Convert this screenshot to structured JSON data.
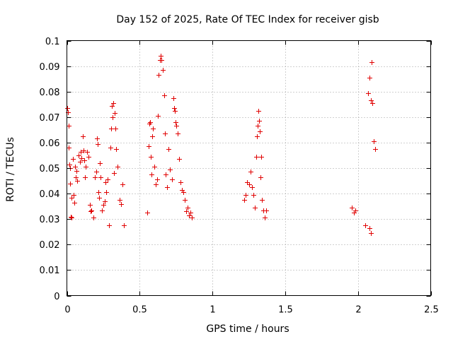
{
  "chart_data": {
    "type": "scatter",
    "title": "Day 152 of 2025, Rate Of TEC Index for receiver gisb",
    "xlabel": "GPS time / hours",
    "ylabel": "ROTI / TECUs",
    "xlim": [
      0,
      2.5
    ],
    "ylim": [
      0,
      0.1
    ],
    "x_ticks": [
      "0",
      "0.5",
      "1",
      "1.5",
      "2",
      "2.5"
    ],
    "y_ticks": [
      "0",
      "0.01",
      "0.02",
      "0.03",
      "0.04",
      "0.05",
      "0.06",
      "0.07",
      "0.08",
      "0.09",
      "0.1"
    ],
    "x_tick_values": [
      0,
      0.5,
      1,
      1.5,
      2,
      2.5
    ],
    "y_tick_values": [
      0,
      0.01,
      0.02,
      0.03,
      0.04,
      0.05,
      0.06,
      0.07,
      0.08,
      0.09,
      0.1
    ],
    "grid": true,
    "marker": "+",
    "color": "#e00000",
    "series": [
      {
        "points": [
          [
            0.0,
            0.0735
          ],
          [
            0.005,
            0.072
          ],
          [
            0.01,
            0.0665
          ],
          [
            0.012,
            0.058
          ],
          [
            0.015,
            0.0515
          ],
          [
            0.02,
            0.044
          ],
          [
            0.022,
            0.05
          ],
          [
            0.025,
            0.031
          ],
          [
            0.03,
            0.0385
          ],
          [
            0.032,
            0.0305
          ],
          [
            0.04,
            0.0535
          ],
          [
            0.045,
            0.0395
          ],
          [
            0.05,
            0.0365
          ],
          [
            0.055,
            0.0505
          ],
          [
            0.06,
            0.0465
          ],
          [
            0.065,
            0.049
          ],
          [
            0.07,
            0.045
          ],
          [
            0.08,
            0.055
          ],
          [
            0.09,
            0.0525
          ],
          [
            0.095,
            0.0565
          ],
          [
            0.1,
            0.054
          ],
          [
            0.11,
            0.0625
          ],
          [
            0.115,
            0.057
          ],
          [
            0.12,
            0.053
          ],
          [
            0.125,
            0.0465
          ],
          [
            0.13,
            0.0505
          ],
          [
            0.14,
            0.0565
          ],
          [
            0.15,
            0.0545
          ],
          [
            0.16,
            0.0355
          ],
          [
            0.165,
            0.033
          ],
          [
            0.17,
            0.0335
          ],
          [
            0.18,
            0.0305
          ],
          [
            0.19,
            0.0465
          ],
          [
            0.2,
            0.0485
          ],
          [
            0.205,
            0.0615
          ],
          [
            0.21,
            0.0595
          ],
          [
            0.215,
            0.0405
          ],
          [
            0.22,
            0.0385
          ],
          [
            0.225,
            0.052
          ],
          [
            0.23,
            0.0465
          ],
          [
            0.24,
            0.0335
          ],
          [
            0.25,
            0.0355
          ],
          [
            0.26,
            0.037
          ],
          [
            0.265,
            0.0445
          ],
          [
            0.27,
            0.0405
          ],
          [
            0.28,
            0.0455
          ],
          [
            0.29,
            0.0275
          ],
          [
            0.3,
            0.058
          ],
          [
            0.305,
            0.0655
          ],
          [
            0.31,
            0.0745
          ],
          [
            0.315,
            0.07
          ],
          [
            0.32,
            0.0755
          ],
          [
            0.325,
            0.048
          ],
          [
            0.33,
            0.0715
          ],
          [
            0.335,
            0.0655
          ],
          [
            0.34,
            0.0575
          ],
          [
            0.35,
            0.0505
          ],
          [
            0.36,
            0.0375
          ],
          [
            0.37,
            0.036
          ],
          [
            0.38,
            0.0435
          ],
          [
            0.39,
            0.0275
          ],
          [
            0.55,
            0.0325
          ],
          [
            0.56,
            0.0585
          ],
          [
            0.565,
            0.0675
          ],
          [
            0.57,
            0.068
          ],
          [
            0.575,
            0.0545
          ],
          [
            0.58,
            0.0475
          ],
          [
            0.585,
            0.0625
          ],
          [
            0.59,
            0.0655
          ],
          [
            0.6,
            0.0505
          ],
          [
            0.61,
            0.0435
          ],
          [
            0.62,
            0.0455
          ],
          [
            0.625,
            0.0705
          ],
          [
            0.63,
            0.0865
          ],
          [
            0.64,
            0.0925
          ],
          [
            0.645,
            0.094
          ],
          [
            0.65,
            0.0925
          ],
          [
            0.66,
            0.0885
          ],
          [
            0.67,
            0.0785
          ],
          [
            0.675,
            0.0635
          ],
          [
            0.68,
            0.0475
          ],
          [
            0.69,
            0.0425
          ],
          [
            0.7,
            0.0575
          ],
          [
            0.71,
            0.0495
          ],
          [
            0.72,
            0.0455
          ],
          [
            0.73,
            0.0775
          ],
          [
            0.735,
            0.0735
          ],
          [
            0.74,
            0.0725
          ],
          [
            0.745,
            0.068
          ],
          [
            0.75,
            0.0665
          ],
          [
            0.76,
            0.0635
          ],
          [
            0.77,
            0.0535
          ],
          [
            0.78,
            0.0445
          ],
          [
            0.79,
            0.0415
          ],
          [
            0.8,
            0.0405
          ],
          [
            0.81,
            0.0375
          ],
          [
            0.82,
            0.033
          ],
          [
            0.83,
            0.0345
          ],
          [
            0.84,
            0.0315
          ],
          [
            0.85,
            0.0325
          ],
          [
            0.86,
            0.0305
          ],
          [
            1.22,
            0.0375
          ],
          [
            1.23,
            0.0395
          ],
          [
            1.24,
            0.0445
          ],
          [
            1.25,
            0.0435
          ],
          [
            1.26,
            0.0485
          ],
          [
            1.27,
            0.0425
          ],
          [
            1.28,
            0.0395
          ],
          [
            1.29,
            0.0345
          ],
          [
            1.3,
            0.0545
          ],
          [
            1.305,
            0.0625
          ],
          [
            1.31,
            0.0665
          ],
          [
            1.315,
            0.0725
          ],
          [
            1.32,
            0.0685
          ],
          [
            1.325,
            0.0645
          ],
          [
            1.33,
            0.0465
          ],
          [
            1.335,
            0.0545
          ],
          [
            1.34,
            0.0375
          ],
          [
            1.35,
            0.0335
          ],
          [
            1.36,
            0.0305
          ],
          [
            1.37,
            0.0335
          ],
          [
            1.96,
            0.0345
          ],
          [
            1.97,
            0.0325
          ],
          [
            1.98,
            0.0335
          ],
          [
            2.07,
            0.0795
          ],
          [
            2.08,
            0.0855
          ],
          [
            2.09,
            0.0765
          ],
          [
            2.095,
            0.0915
          ],
          [
            2.1,
            0.0755
          ],
          [
            2.11,
            0.0605
          ],
          [
            2.12,
            0.0575
          ],
          [
            2.08,
            0.0265
          ],
          [
            2.09,
            0.0245
          ],
          [
            2.05,
            0.0275
          ]
        ]
      }
    ]
  }
}
